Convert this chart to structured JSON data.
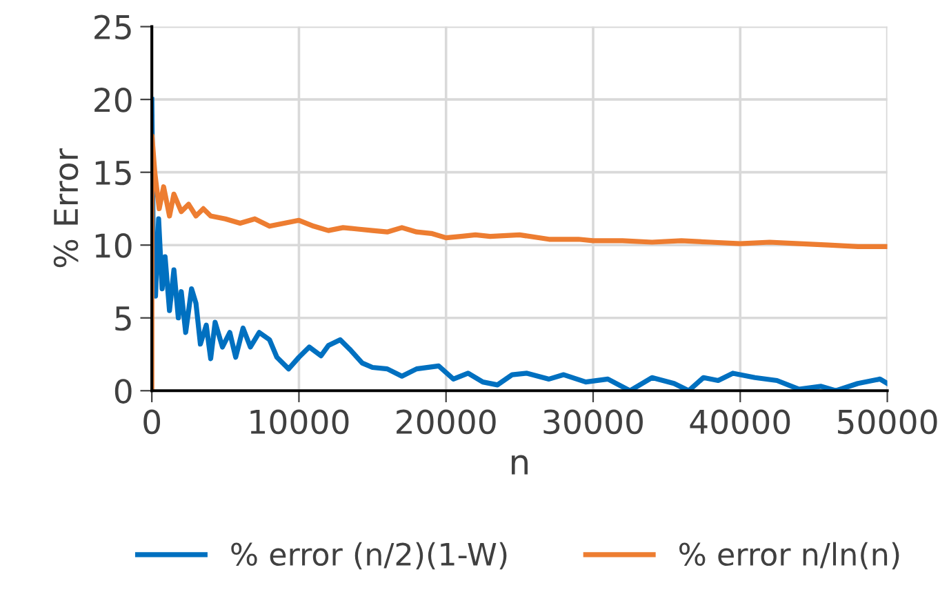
{
  "chart_data": {
    "type": "line",
    "xlabel": "n",
    "ylabel": "% Error",
    "xlim": [
      0,
      50000
    ],
    "xticks": [
      0,
      10000,
      20000,
      30000,
      40000,
      50000
    ],
    "ylim": [
      0,
      25
    ],
    "yticks": [
      0,
      5,
      10,
      15,
      20,
      25
    ],
    "grid": true,
    "legend": "bottom",
    "marker": "none",
    "line_style": "solid",
    "series": [
      {
        "name": "% error (n/2)(1-W)",
        "color": "#0070c0",
        "x": [
          0,
          100,
          250,
          460,
          700,
          900,
          1200,
          1500,
          1800,
          2000,
          2300,
          2700,
          3000,
          3300,
          3700,
          4000,
          4300,
          4800,
          5300,
          5700,
          6200,
          6700,
          7300,
          8000,
          8500,
          9300,
          10000,
          10700,
          11500,
          12000,
          12800,
          13500,
          14300,
          15000,
          16000,
          17000,
          18000,
          19500,
          20500,
          21500,
          22500,
          23500,
          24500,
          25500,
          27000,
          28000,
          29500,
          31000,
          32500,
          34000,
          35500,
          36500,
          37500,
          38500,
          39500,
          41000,
          42500,
          44000,
          45500,
          46500,
          48000,
          49500,
          50000
        ],
        "values": [
          20,
          9,
          6.5,
          11.8,
          7,
          9.2,
          5.5,
          8.3,
          5,
          6.8,
          4,
          7,
          6,
          3.2,
          4.5,
          2.2,
          4.7,
          3,
          4,
          2.3,
          4.3,
          3,
          4,
          3.5,
          2.3,
          1.5,
          2.3,
          3,
          2.4,
          3.1,
          3.5,
          2.8,
          1.9,
          1.6,
          1.5,
          1.0,
          1.5,
          1.7,
          0.8,
          1.2,
          0.6,
          0.4,
          1.1,
          1.2,
          0.8,
          1.1,
          0.6,
          0.8,
          0.0,
          0.9,
          0.5,
          0.0,
          0.9,
          0.7,
          1.2,
          0.9,
          0.7,
          0.1,
          0.3,
          0.0,
          0.5,
          0.8,
          0.5
        ]
      },
      {
        "name": "% error n/ln(n)",
        "color": "#ed7d31",
        "x": [
          0,
          10,
          200,
          500,
          800,
          1200,
          1500,
          2000,
          2500,
          3000,
          3500,
          4000,
          5000,
          6000,
          7000,
          8000,
          9000,
          10000,
          11000,
          12000,
          13000,
          14000,
          15000,
          16000,
          17000,
          18000,
          19000,
          20000,
          21000,
          22000,
          23000,
          25000,
          27000,
          29000,
          30000,
          32000,
          34000,
          36000,
          38000,
          40000,
          42000,
          44000,
          46000,
          48000,
          50000
        ],
        "values": [
          0,
          17.5,
          15,
          12.5,
          14,
          12,
          13.5,
          12.3,
          12.8,
          12,
          12.5,
          12,
          11.8,
          11.5,
          11.8,
          11.3,
          11.5,
          11.7,
          11.3,
          11,
          11.2,
          11.1,
          11,
          10.9,
          11.2,
          10.9,
          10.8,
          10.5,
          10.6,
          10.7,
          10.6,
          10.7,
          10.4,
          10.4,
          10.3,
          10.3,
          10.2,
          10.3,
          10.2,
          10.1,
          10.2,
          10.1,
          10.0,
          9.9,
          9.9
        ]
      }
    ]
  }
}
